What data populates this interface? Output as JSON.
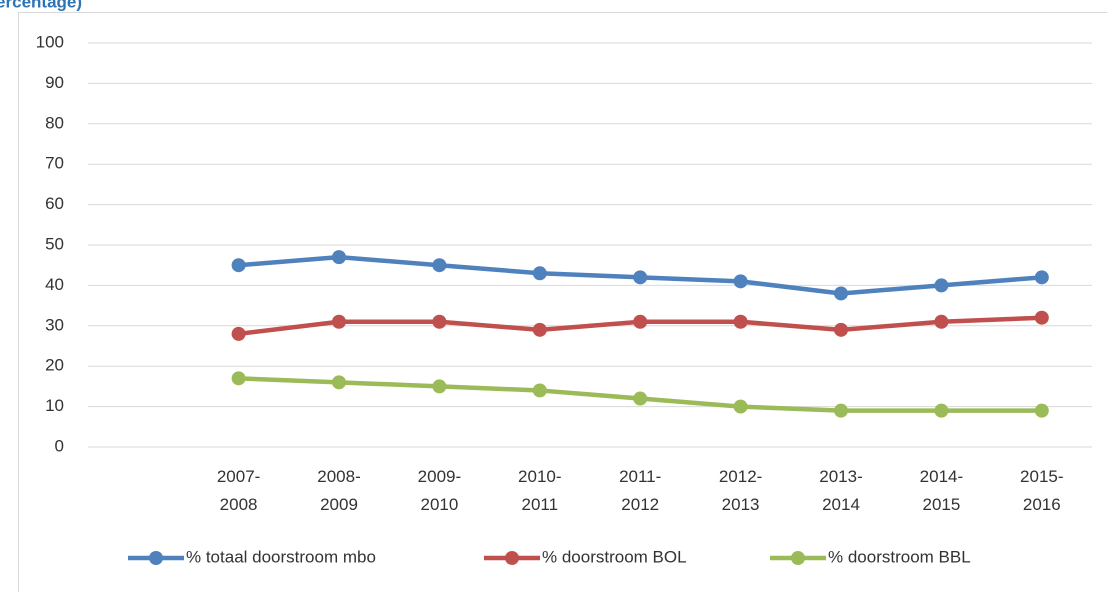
{
  "chart_data": {
    "type": "line",
    "title": "(percentage)",
    "categories": [
      null,
      "2007-2008",
      "2008-2009",
      "2009-2010",
      "2010-2011",
      "2011-2012",
      "2012-2013",
      "2013-2014",
      "2014-2015",
      "2015-2016"
    ],
    "series": [
      {
        "name": "% totaal doorstroom mbo",
        "color": "#4f81bd",
        "values": [
          null,
          45,
          47,
          45,
          43,
          42,
          41,
          38,
          40,
          42
        ]
      },
      {
        "name": "% doorstroom BOL",
        "color": "#c0504d",
        "values": [
          null,
          28,
          31,
          31,
          29,
          31,
          31,
          29,
          31,
          32
        ]
      },
      {
        "name": "% doorstroom BBL",
        "color": "#9bbb59",
        "values": [
          null,
          17,
          16,
          15,
          14,
          12,
          10,
          9,
          9,
          9
        ]
      }
    ],
    "ylim": [
      0,
      100
    ],
    "yticks": [
      0,
      10,
      20,
      30,
      40,
      50,
      60,
      70,
      80,
      90,
      100
    ],
    "grid": true,
    "legend": "bottom"
  }
}
